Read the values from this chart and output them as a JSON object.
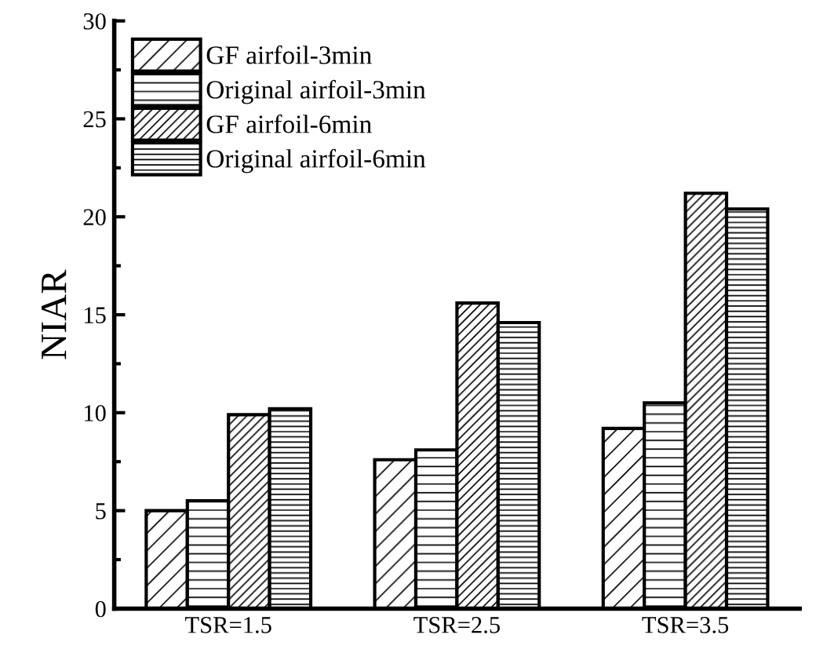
{
  "chart_data": {
    "type": "bar",
    "ylabel": "NIAR",
    "categories": [
      "TSR=1.5",
      "TSR=2.5",
      "TSR=3.5"
    ],
    "series": [
      {
        "name": "GF airfoil-3min",
        "color": "#000000",
        "values": [
          5.0,
          7.6,
          9.2
        ]
      },
      {
        "name": "Original airfoil-3min",
        "color": "#000000",
        "values": [
          5.5,
          8.1,
          10.5
        ]
      },
      {
        "name": "GF airfoil-6min",
        "color": "#000000",
        "values": [
          9.9,
          15.6,
          21.2
        ]
      },
      {
        "name": "Original airfoil-6min",
        "color": "#000000",
        "values": [
          10.2,
          14.6,
          20.4
        ]
      }
    ],
    "ylim": [
      0,
      30
    ],
    "yticks": [
      0,
      5,
      10,
      15,
      20,
      25,
      30
    ],
    "legend": "top left",
    "grid": false
  }
}
